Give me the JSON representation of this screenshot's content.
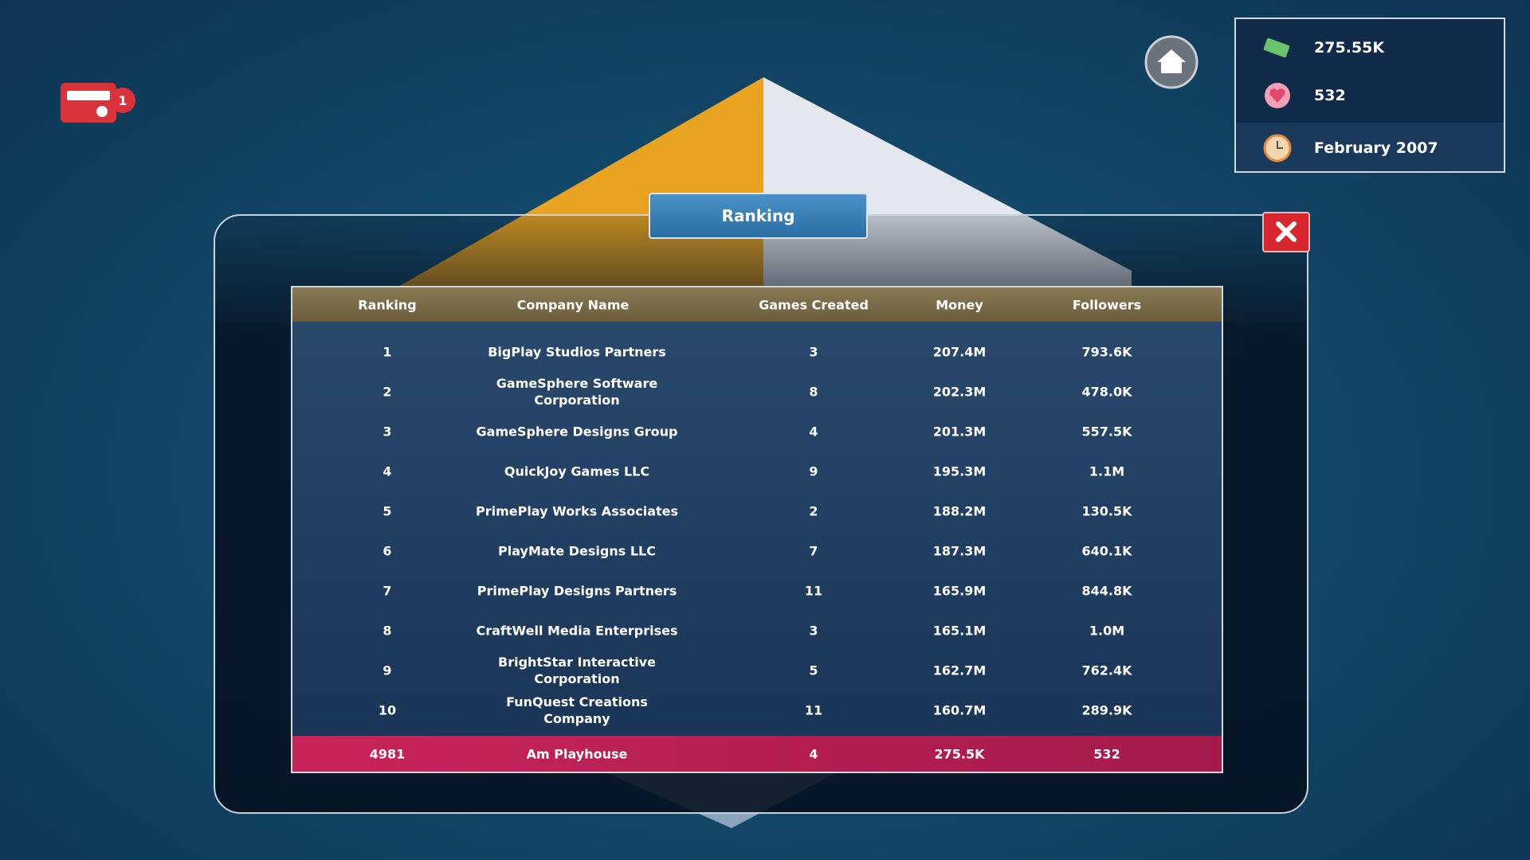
{
  "notification": {
    "badge": "1"
  },
  "hud": {
    "money": "275.55K",
    "followers": "532",
    "date": "February 2007"
  },
  "dialog": {
    "title": "Ranking"
  },
  "table": {
    "headers": [
      "Ranking",
      "Company Name",
      "Games Created",
      "Money",
      "Followers"
    ],
    "rows": [
      [
        "1",
        "BigPlay Studios Partners",
        "3",
        "207.4M",
        "793.6K"
      ],
      [
        "2",
        "GameSphere Software Corporation",
        "8",
        "202.3M",
        "478.0K"
      ],
      [
        "3",
        "GameSphere Designs Group",
        "4",
        "201.3M",
        "557.5K"
      ],
      [
        "4",
        "QuickJoy Games LLC",
        "9",
        "195.3M",
        "1.1M"
      ],
      [
        "5",
        "PrimePlay Works Associates",
        "2",
        "188.2M",
        "130.5K"
      ],
      [
        "6",
        "PlayMate Designs LLC",
        "7",
        "187.3M",
        "640.1K"
      ],
      [
        "7",
        "PrimePlay Designs Partners",
        "11",
        "165.9M",
        "844.8K"
      ],
      [
        "8",
        "CraftWell Media Enterprises",
        "3",
        "165.1M",
        "1.0M"
      ],
      [
        "9",
        "BrightStar Interactive Corporation",
        "5",
        "162.7M",
        "762.4K"
      ],
      [
        "10",
        "FunQuest Creations Company",
        "11",
        "160.7M",
        "289.9K"
      ]
    ],
    "player_row": [
      "4981",
      "Am Playhouse",
      "4",
      "275.5K",
      "532"
    ]
  }
}
